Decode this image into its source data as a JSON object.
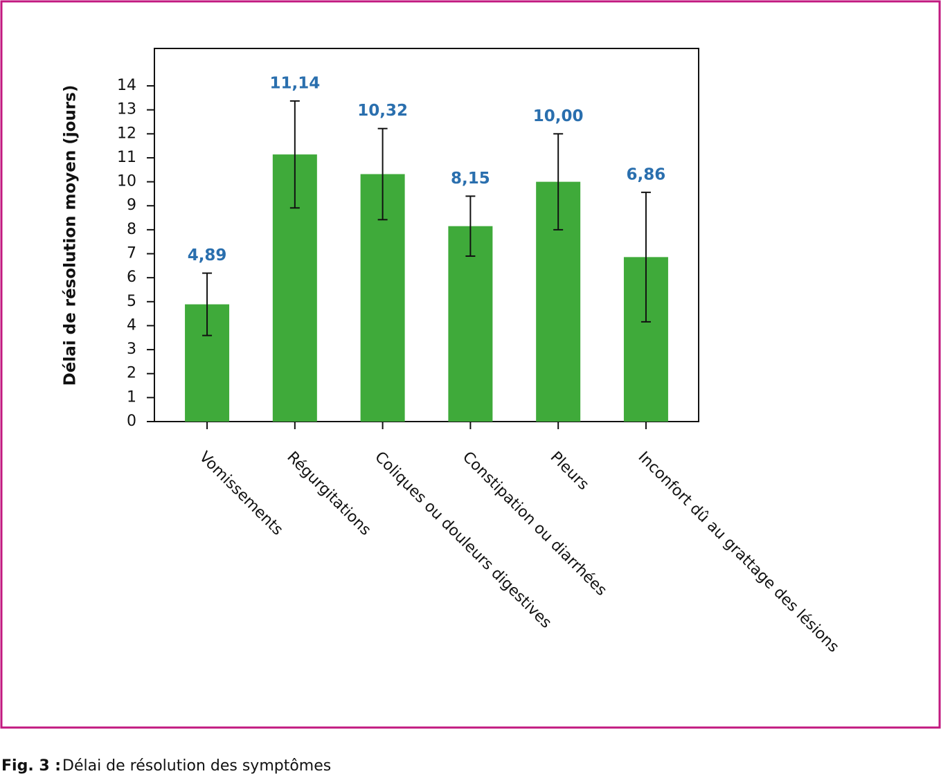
{
  "chart_data": {
    "type": "bar",
    "y_label": "Délai de résolution moyen (jours)",
    "categories": [
      "Vomissements",
      "Régurgitations",
      "Coliques ou douleurs digestives",
      "Constipation ou diarrhées",
      "Pleurs",
      "Inconfort dû au grattage des lésions"
    ],
    "values": [
      4.89,
      11.14,
      10.32,
      8.15,
      10.0,
      6.86
    ],
    "value_labels": [
      "4,89",
      "11,14",
      "10,32",
      "8,15",
      "10,00",
      "6,86"
    ],
    "errors": [
      1.3,
      2.23,
      1.9,
      1.25,
      2,
      2.7
    ],
    "color": "#3faa3a",
    "label_color": "#2a6fae",
    "ylim": [
      0,
      15.56
    ],
    "yticks": [
      0,
      1,
      2,
      3,
      4,
      5,
      6,
      7,
      8,
      9,
      10,
      11,
      12,
      13,
      14
    ]
  },
  "caption": {
    "label": "Fig. 3 :",
    "text": "Délai de résolution des symptômes"
  }
}
